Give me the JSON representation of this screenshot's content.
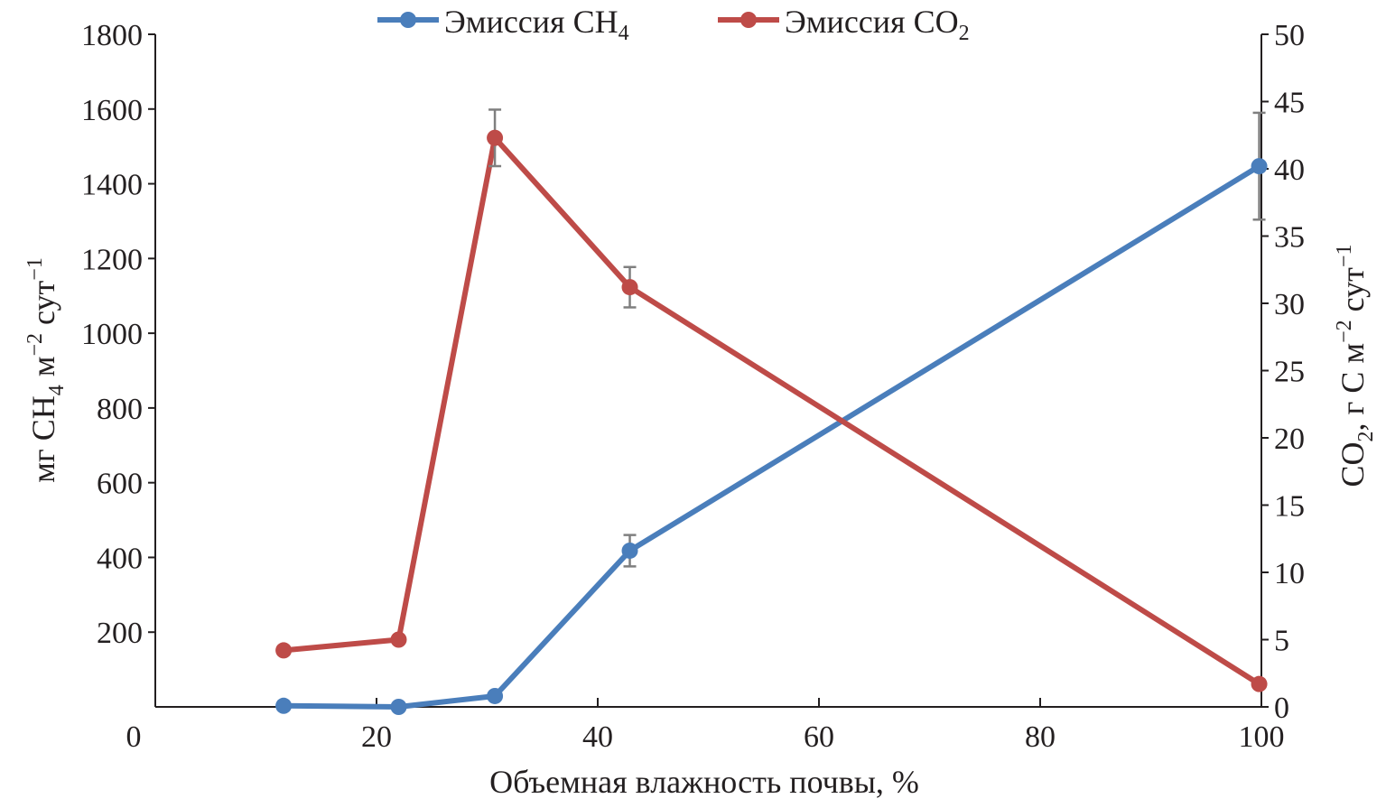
{
  "chart_data": {
    "type": "line",
    "title": "",
    "xlabel": "Объемная влажность почвы, %",
    "ylabel": {
      "pre": "мг CH",
      "sub": "4",
      "mid": " м",
      "sup1": "−2",
      "mid2": " сут",
      "sup2": "−1"
    },
    "y2label": {
      "pre": "CO",
      "sub": "2",
      "mid": ", г С м",
      "sup1": "−2",
      "mid2": " сут",
      "sup2": "−1"
    },
    "xlim": [
      0,
      100
    ],
    "ylim": [
      0,
      1800
    ],
    "y2lim": [
      0,
      50
    ],
    "x_ticks": [
      "0",
      "20",
      "40",
      "60",
      "80",
      "100"
    ],
    "y_ticks": [
      "200",
      "400",
      "600",
      "800",
      "1000",
      "1200",
      "1400",
      "1600",
      "1800"
    ],
    "y2_ticks": [
      "0",
      "5",
      "10",
      "15",
      "20",
      "25",
      "30",
      "35",
      "40",
      "45",
      "50"
    ],
    "legend_position": "top-center",
    "series": [
      {
        "name": "Эмиссия CH",
        "name_sub": "4",
        "axis": "left",
        "color": "#4a7ebb",
        "x": [
          11.6,
          22,
          30.7,
          42.9,
          99.8
        ],
        "y": [
          3,
          0,
          29,
          418,
          1447
        ],
        "err": [
          0,
          0,
          0,
          42,
          143
        ]
      },
      {
        "name": "Эмиссия CO",
        "name_sub": "2",
        "axis": "right",
        "color": "#be4b48",
        "x": [
          11.6,
          22,
          30.7,
          42.9,
          99.8
        ],
        "y": [
          4.2,
          5.0,
          42.3,
          31.2,
          1.7
        ],
        "err": [
          0,
          0,
          2.1,
          1.5,
          0
        ]
      }
    ]
  }
}
